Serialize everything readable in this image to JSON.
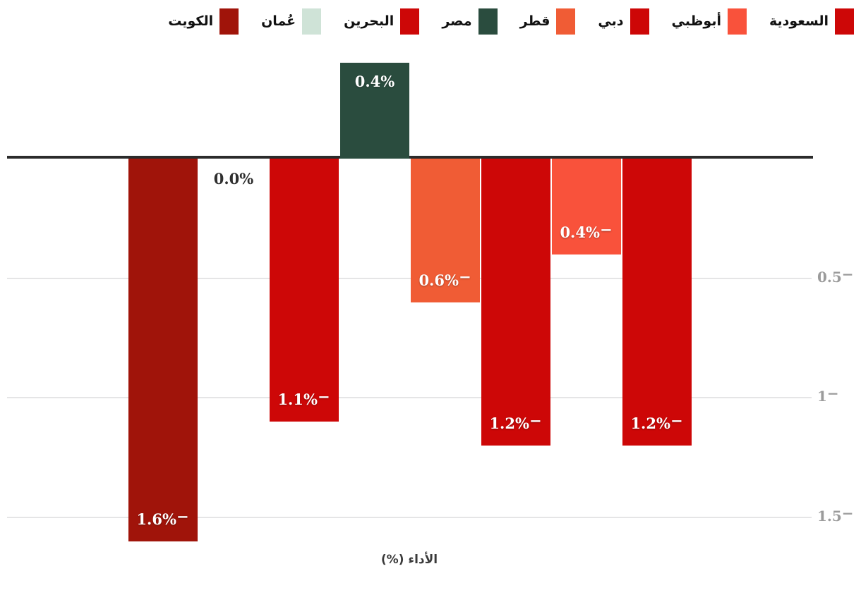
{
  "chart_data": {
    "type": "bar",
    "title": "",
    "xlabel": "الأداء (%)",
    "direction": "rtl",
    "grid": true,
    "legend_position": "top-right",
    "y_axis": {
      "side": "right",
      "ylim": [
        0.5,
        -1.7
      ],
      "ticks": [
        {
          "value": -0.5,
          "label": "0.5",
          "suffix": "−"
        },
        {
          "value": -1,
          "label": "1",
          "suffix": "−"
        },
        {
          "value": -1.5,
          "label": "1.5",
          "suffix": "−"
        }
      ]
    },
    "categories": [
      "السعودية",
      "أبوظبي",
      "دبي",
      "قطر",
      "مصر",
      "البحرين",
      "عُمان",
      "الكويت"
    ],
    "values": [
      -1.2,
      -0.4,
      -1.2,
      -0.6,
      0.4,
      -1.1,
      0.0,
      -1.6
    ],
    "points": [
      {
        "key": "kuwait",
        "label": "الكويت",
        "value": -1.6,
        "color": "#a0140a",
        "value_label": "1.6%",
        "suffix": "−"
      },
      {
        "key": "oman",
        "label": "عُمان",
        "value": 0.0,
        "color": "#cfe3d7",
        "value_label": "0.0%",
        "suffix": ""
      },
      {
        "key": "bahrain",
        "label": "البحرين",
        "value": -1.1,
        "color": "#cd0707",
        "value_label": "1.1%",
        "suffix": "−"
      },
      {
        "key": "egypt",
        "label": "مصر",
        "value": 0.4,
        "color": "#2a4c3e",
        "value_label": "0.4%",
        "suffix": ""
      },
      {
        "key": "qatar",
        "label": "قطر",
        "value": -0.6,
        "color": "#f05c35",
        "value_label": "0.6%",
        "suffix": "−"
      },
      {
        "key": "dubai",
        "label": "دبي",
        "value": -1.2,
        "color": "#cd0707",
        "value_label": "1.2%",
        "suffix": "−"
      },
      {
        "key": "abudhabi",
        "label": "أبوظبي",
        "value": -0.4,
        "color": "#f9523b",
        "value_label": "0.4%",
        "suffix": "−"
      },
      {
        "key": "saudi",
        "label": "السعودية",
        "value": -1.2,
        "color": "#cd0707",
        "value_label": "1.2%",
        "suffix": "−"
      }
    ]
  }
}
